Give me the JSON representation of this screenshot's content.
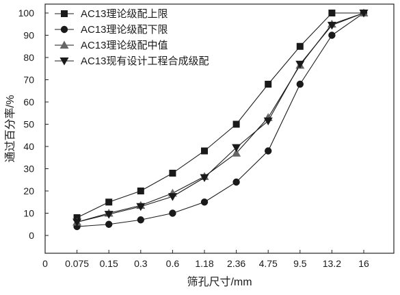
{
  "chart_data": {
    "type": "line",
    "xlabel": "筛孔尺寸/mm",
    "ylabel": "通过百分率/%",
    "categories": [
      "0",
      "0.075",
      "0.15",
      "0.3",
      "0.6",
      "1.18",
      "2.36",
      "4.75",
      "9.5",
      "13.2",
      "16"
    ],
    "yticks": [
      0,
      10,
      20,
      30,
      40,
      50,
      60,
      70,
      80,
      90,
      100
    ],
    "ylim": [
      -8,
      104
    ],
    "grid": false,
    "legend": "top-left",
    "series": [
      {
        "name": "AC13理论级配上限",
        "marker": "square",
        "values": [
          null,
          8,
          15,
          20,
          28,
          38,
          50,
          68,
          85,
          100,
          100
        ]
      },
      {
        "name": "AC13理论级配下限",
        "marker": "circle",
        "values": [
          null,
          4,
          5,
          7,
          10,
          15,
          24,
          38,
          68,
          90,
          100
        ]
      },
      {
        "name": "AC13理论级配中值",
        "marker": "triangle-up",
        "values": [
          null,
          6,
          10,
          13.5,
          19,
          26.5,
          37,
          53,
          76.5,
          95,
          100
        ]
      },
      {
        "name": "AC13现有设计工程合成级配",
        "marker": "triangle-down",
        "values": [
          null,
          6,
          9.5,
          13,
          17.5,
          26,
          39.5,
          51.5,
          77,
          94.5,
          100
        ]
      }
    ]
  }
}
